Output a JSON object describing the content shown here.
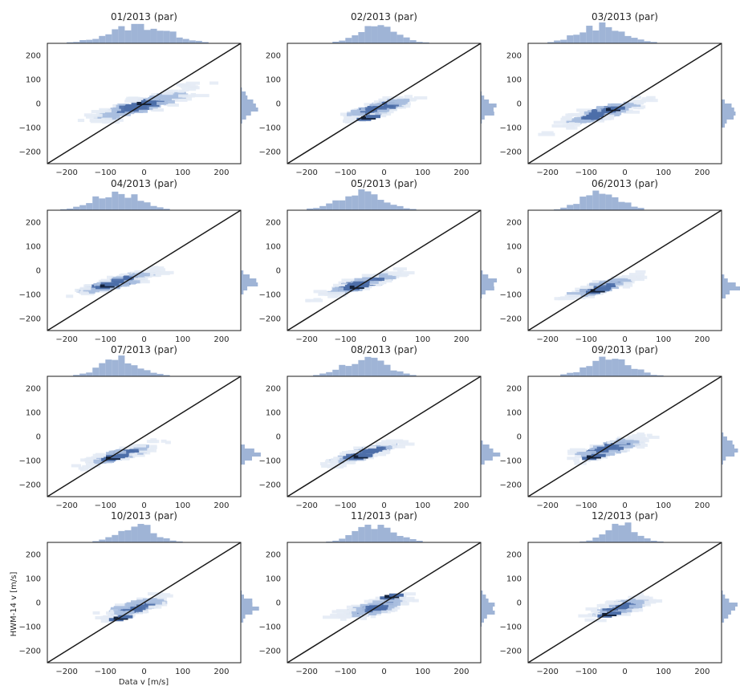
{
  "figure": {
    "xlabel": "Data v [m/s]",
    "ylabel": "HWM-14 v [m/s]"
  },
  "colors": {
    "hist": "#9fb4d6",
    "bin_light": "#e4ebf5",
    "bin_mid": "#a9bedf",
    "bin_dark": "#4c6ea8",
    "bin_darkest": "#13223d",
    "identity_line": "#1a1a1a",
    "frame": "#1a1a1a"
  },
  "chart_data": [
    {
      "type": "heatmap",
      "title": "01/2013 (par)",
      "xlim": [
        -250,
        250
      ],
      "ylim": [
        -250,
        250
      ],
      "xticks": [
        "−200",
        "−100",
        "0",
        "100",
        "200"
      ],
      "yticks": [
        "200",
        "100",
        "0",
        "−100",
        "−200"
      ],
      "identity_line": true,
      "center": [
        -10,
        -10
      ],
      "spread": [
        85,
        35
      ],
      "peak": [
        0,
        0
      ]
    },
    {
      "type": "heatmap",
      "title": "02/2013 (par)",
      "xlim": [
        -250,
        250
      ],
      "ylim": [
        -250,
        250
      ],
      "xticks": [
        "−200",
        "−100",
        "0",
        "100",
        "200"
      ],
      "yticks": [
        "200",
        "100",
        "0",
        "−100",
        "−200"
      ],
      "identity_line": true,
      "center": [
        -15,
        -20
      ],
      "spread": [
        55,
        28
      ],
      "peak": [
        -40,
        -60
      ]
    },
    {
      "type": "heatmap",
      "title": "03/2013 (par)",
      "xlim": [
        -250,
        250
      ],
      "ylim": [
        -250,
        250
      ],
      "xticks": [
        "−200",
        "−100",
        "0",
        "100",
        "200"
      ],
      "yticks": [
        "200",
        "100",
        "0",
        "−100",
        "−200"
      ],
      "identity_line": true,
      "center": [
        -60,
        -40
      ],
      "spread": [
        65,
        30
      ],
      "peak": [
        -30,
        -25
      ]
    },
    {
      "type": "heatmap",
      "title": "04/2013 (par)",
      "xlim": [
        -250,
        250
      ],
      "ylim": [
        -250,
        250
      ],
      "xticks": [
        "−200",
        "−100",
        "0",
        "100",
        "200"
      ],
      "yticks": [
        "200",
        "100",
        "0",
        "−100",
        "−200"
      ],
      "identity_line": true,
      "center": [
        -70,
        -50
      ],
      "spread": [
        65,
        25
      ],
      "peak": [
        -95,
        -65
      ]
    },
    {
      "type": "heatmap",
      "title": "05/2013 (par)",
      "xlim": [
        -250,
        250
      ],
      "ylim": [
        -250,
        250
      ],
      "xticks": [
        "−200",
        "−100",
        "0",
        "100",
        "200"
      ],
      "yticks": [
        "200",
        "100",
        "0",
        "−100",
        "−200"
      ],
      "identity_line": true,
      "center": [
        -60,
        -55
      ],
      "spread": [
        65,
        25
      ],
      "peak": [
        -70,
        -70
      ]
    },
    {
      "type": "heatmap",
      "title": "06/2013 (par)",
      "xlim": [
        -250,
        250
      ],
      "ylim": [
        -250,
        250
      ],
      "xticks": [
        "−200",
        "−100",
        "0",
        "100",
        "200"
      ],
      "yticks": [
        "200",
        "100",
        "0",
        "−100",
        "−200"
      ],
      "identity_line": true,
      "center": [
        -60,
        -70
      ],
      "spread": [
        55,
        25
      ],
      "peak": [
        -70,
        -85
      ]
    },
    {
      "type": "heatmap",
      "title": "07/2013 (par)",
      "xlim": [
        -250,
        250
      ],
      "ylim": [
        -250,
        250
      ],
      "xticks": [
        "−200",
        "−100",
        "0",
        "100",
        "200"
      ],
      "yticks": [
        "200",
        "100",
        "0",
        "−100",
        "−200"
      ],
      "identity_line": true,
      "center": [
        -60,
        -75
      ],
      "spread": [
        55,
        22
      ],
      "peak": [
        -80,
        -90
      ]
    },
    {
      "type": "heatmap",
      "title": "08/2013 (par)",
      "xlim": [
        -250,
        250
      ],
      "ylim": [
        -250,
        250
      ],
      "xticks": [
        "−200",
        "−100",
        "0",
        "100",
        "200"
      ],
      "yticks": [
        "200",
        "100",
        "0",
        "−100",
        "−200"
      ],
      "identity_line": true,
      "center": [
        -50,
        -70
      ],
      "spread": [
        60,
        25
      ],
      "peak": [
        -60,
        -85
      ]
    },
    {
      "type": "heatmap",
      "title": "09/2013 (par)",
      "xlim": [
        -250,
        250
      ],
      "ylim": [
        -250,
        250
      ],
      "xticks": [
        "−200",
        "−100",
        "0",
        "100",
        "200"
      ],
      "yticks": [
        "200",
        "100",
        "0",
        "−100",
        "−200"
      ],
      "identity_line": true,
      "center": [
        -40,
        -50
      ],
      "spread": [
        60,
        30
      ],
      "peak": [
        -80,
        -85
      ]
    },
    {
      "type": "heatmap",
      "title": "10/2013 (par)",
      "xlim": [
        -250,
        250
      ],
      "ylim": [
        -250,
        250
      ],
      "xticks": [
        "−200",
        "−100",
        "0",
        "100",
        "200"
      ],
      "yticks": [
        "200",
        "100",
        "0",
        "−100",
        "−200"
      ],
      "identity_line": true,
      "center": [
        -20,
        -20
      ],
      "spread": [
        50,
        30
      ],
      "peak": [
        -60,
        -65
      ]
    },
    {
      "type": "heatmap",
      "title": "11/2013 (par)",
      "xlim": [
        -250,
        250
      ],
      "ylim": [
        -250,
        250
      ],
      "xticks": [
        "−200",
        "−100",
        "0",
        "100",
        "200"
      ],
      "yticks": [
        "200",
        "100",
        "0",
        "−100",
        "−200"
      ],
      "identity_line": true,
      "center": [
        -20,
        -20
      ],
      "spread": [
        55,
        32
      ],
      "peak": [
        20,
        25
      ]
    },
    {
      "type": "heatmap",
      "title": "12/2013 (par)",
      "xlim": [
        -250,
        250
      ],
      "ylim": [
        -250,
        250
      ],
      "xticks": [
        "−200",
        "−100",
        "0",
        "100",
        "200"
      ],
      "yticks": [
        "200",
        "100",
        "0",
        "−100",
        "−200"
      ],
      "identity_line": true,
      "center": [
        -10,
        -20
      ],
      "spread": [
        45,
        30
      ],
      "peak": [
        -40,
        -50
      ]
    }
  ]
}
